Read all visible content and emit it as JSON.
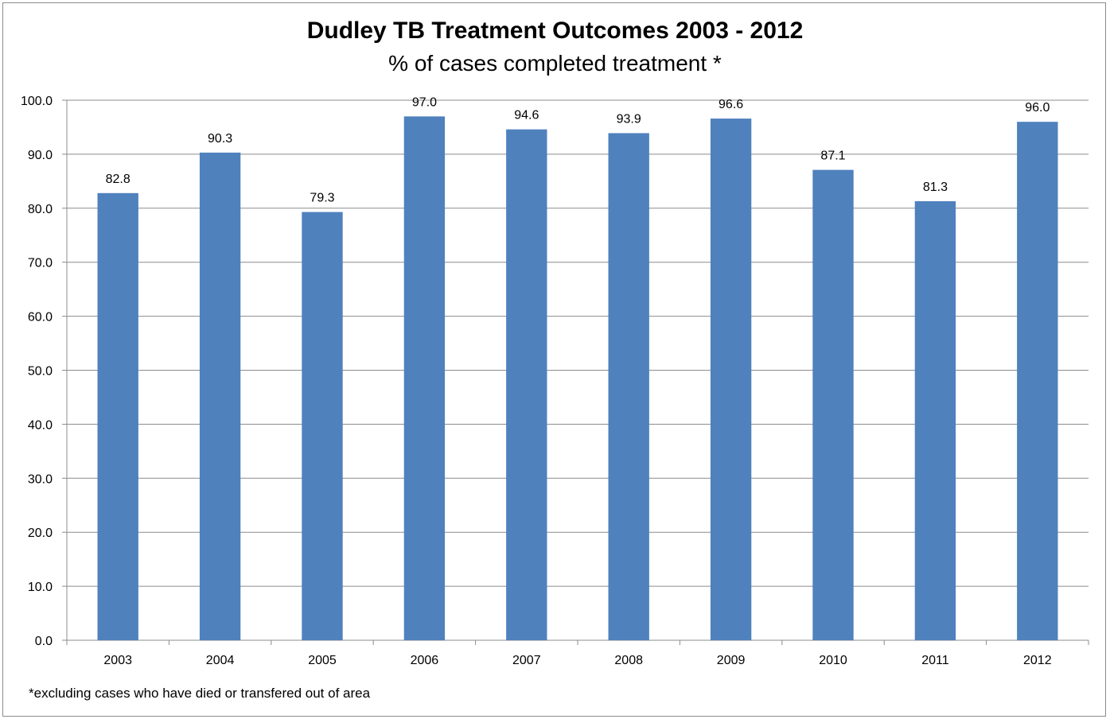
{
  "chart_data": {
    "type": "bar",
    "title": "Dudley TB Treatment Outcomes 2003 - 2012",
    "subtitle": "% of cases completed treatment *",
    "categories": [
      "2003",
      "2004",
      "2005",
      "2006",
      "2007",
      "2008",
      "2009",
      "2010",
      "2011",
      "2012"
    ],
    "values": [
      82.8,
      90.3,
      79.3,
      97.0,
      94.6,
      93.9,
      96.6,
      87.1,
      81.3,
      96.0
    ],
    "data_labels": [
      "82.8",
      "90.3",
      "79.3",
      "97.0",
      "94.6",
      "93.9",
      "96.6",
      "87.1",
      "81.3",
      "96.0"
    ],
    "ylim": [
      0,
      100
    ],
    "yticks": [
      "0.0",
      "10.0",
      "20.0",
      "30.0",
      "40.0",
      "50.0",
      "60.0",
      "70.0",
      "80.0",
      "90.0",
      "100.0"
    ],
    "xlabel": "",
    "ylabel": "",
    "grid": true,
    "legend": "none",
    "bar_color": "#4f81bd",
    "footnote": "*excluding cases who have died or transfered out of area"
  }
}
